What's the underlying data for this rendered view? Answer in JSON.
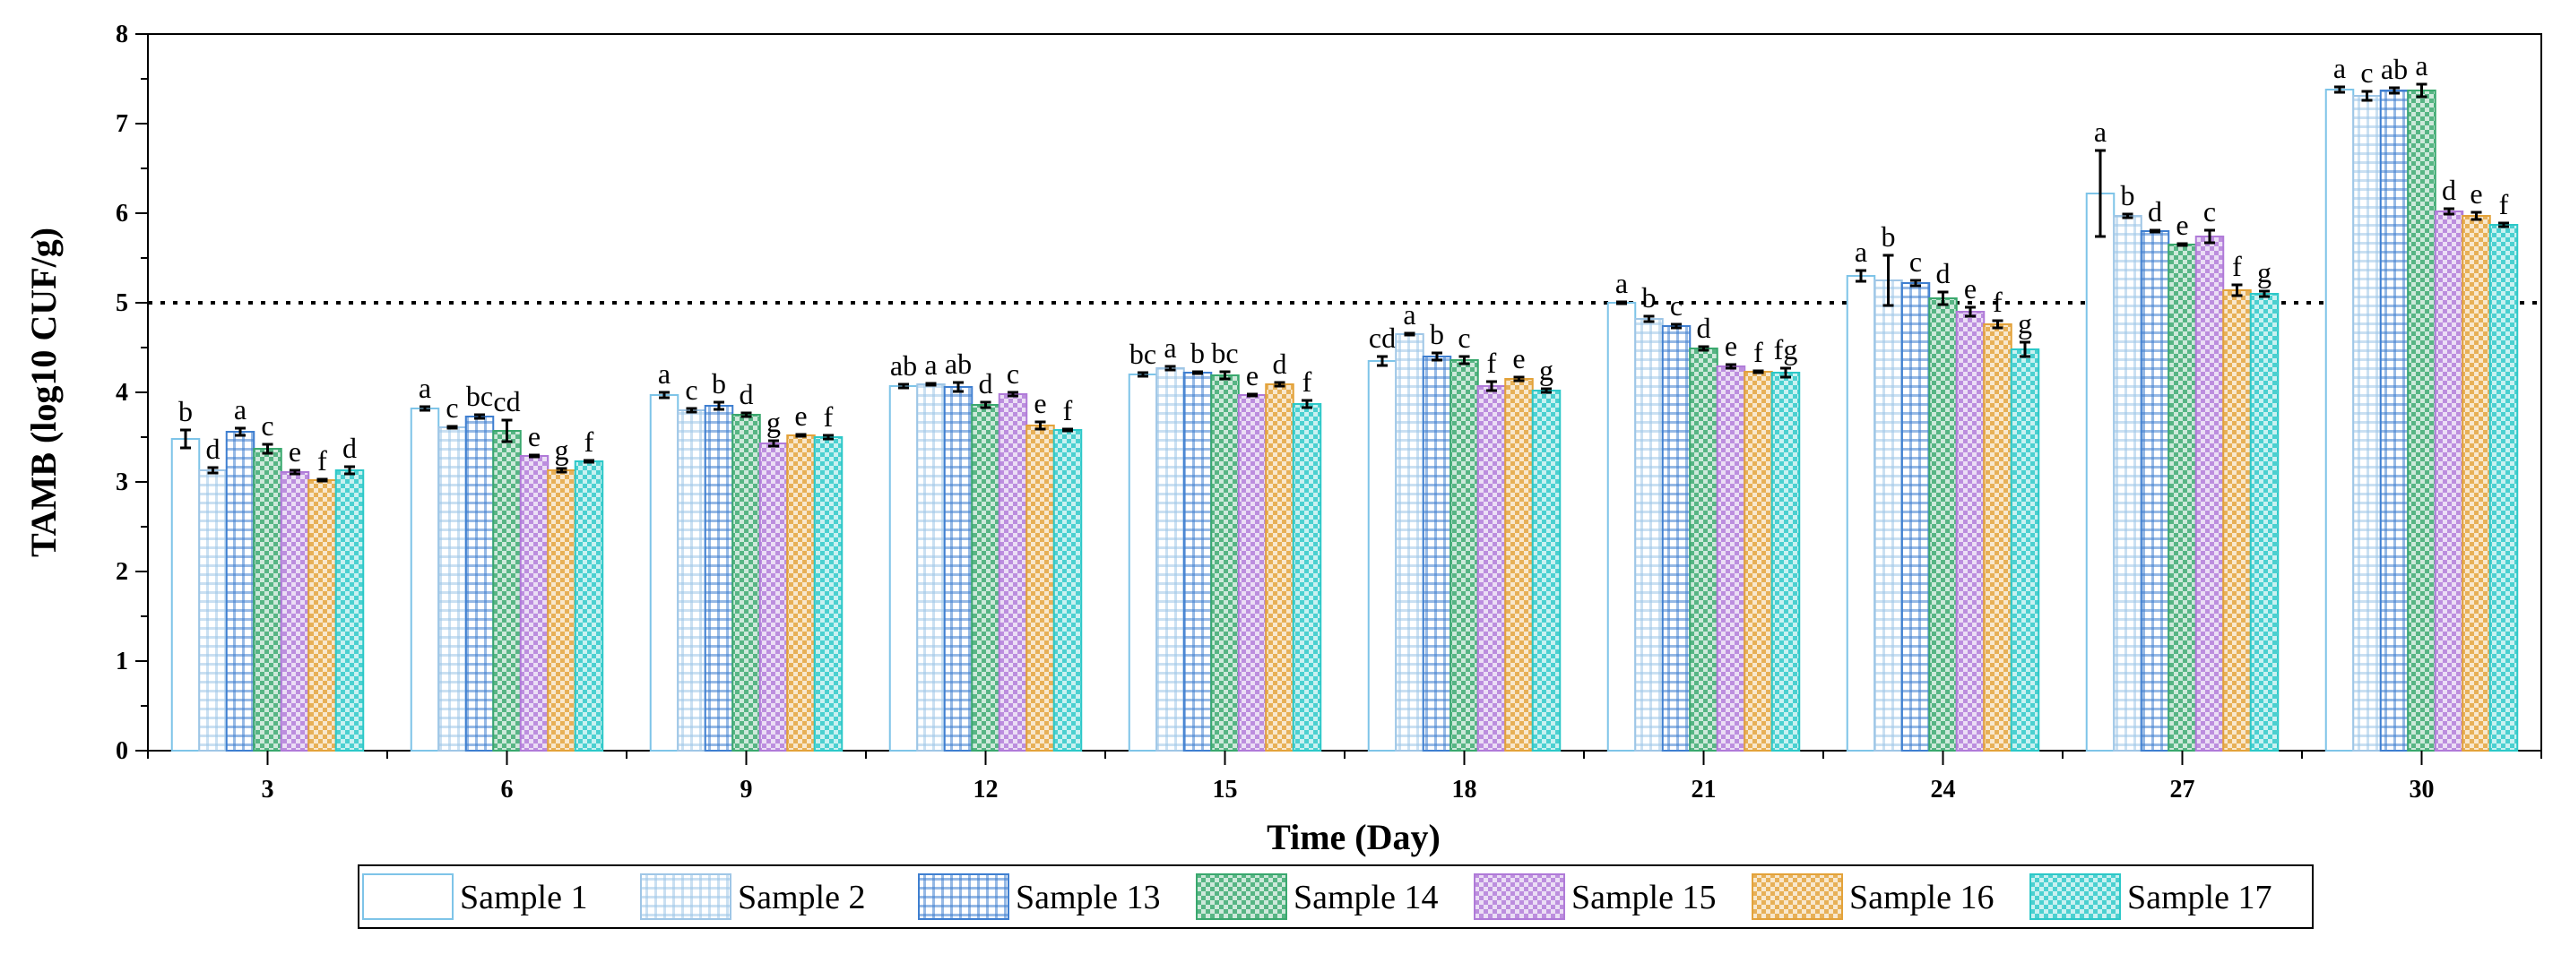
{
  "chart_data": {
    "type": "bar",
    "xlabel": "Time (Day)",
    "ylabel": "TAMB (log10 CUF/g)",
    "ylim": [
      0,
      8
    ],
    "yticks": [
      "0",
      "1",
      "2",
      "3",
      "4",
      "5",
      "6",
      "7",
      "8"
    ],
    "threshold": 5,
    "legend_position": "bottom",
    "categories": [
      "3",
      "6",
      "9",
      "12",
      "15",
      "18",
      "21",
      "24",
      "27",
      "30"
    ],
    "series": [
      {
        "name": "Sample 1",
        "color": "#7ec4e8",
        "pattern": "none",
        "values": [
          3.48,
          3.82,
          3.97,
          4.07,
          4.2,
          4.35,
          5.0,
          5.3,
          6.22,
          7.38
        ],
        "errors": [
          0.1,
          0.02,
          0.03,
          0.02,
          0.02,
          0.05,
          0.01,
          0.06,
          0.48,
          0.03
        ],
        "letters": [
          "b",
          "a",
          "a",
          "ab",
          "bc",
          "cd",
          "a",
          "a",
          "a",
          "a"
        ]
      },
      {
        "name": "Sample 2",
        "color": "#9fc6e6",
        "pattern": "grid",
        "values": [
          3.13,
          3.61,
          3.8,
          4.09,
          4.27,
          4.65,
          4.82,
          5.25,
          5.97,
          7.31
        ],
        "errors": [
          0.03,
          0.01,
          0.02,
          0.01,
          0.02,
          0.01,
          0.03,
          0.28,
          0.02,
          0.05
        ],
        "letters": [
          "d",
          "c",
          "c",
          "a",
          "a",
          "a",
          "b",
          "b",
          "b",
          "c"
        ]
      },
      {
        "name": "Sample 13",
        "color": "#3f7fd0",
        "pattern": "grid",
        "values": [
          3.56,
          3.73,
          3.85,
          4.06,
          4.22,
          4.4,
          4.74,
          5.22,
          5.8,
          7.37
        ],
        "errors": [
          0.04,
          0.02,
          0.04,
          0.05,
          0.01,
          0.04,
          0.02,
          0.03,
          0.01,
          0.03
        ],
        "letters": [
          "a",
          "bc",
          "b",
          "ab",
          "b",
          "b",
          "c",
          "c",
          "d",
          "ab"
        ]
      },
      {
        "name": "Sample 14",
        "color": "#3aa86e",
        "pattern": "check",
        "values": [
          3.37,
          3.57,
          3.75,
          3.86,
          4.19,
          4.36,
          4.49,
          5.05,
          5.65,
          7.37
        ],
        "errors": [
          0.05,
          0.12,
          0.02,
          0.03,
          0.04,
          0.04,
          0.02,
          0.07,
          0.01,
          0.07
        ],
        "letters": [
          "c",
          "cd",
          "d",
          "d",
          "bc",
          "c",
          "d",
          "d",
          "e",
          "a"
        ]
      },
      {
        "name": "Sample 15",
        "color": "#b07ad8",
        "pattern": "check",
        "values": [
          3.11,
          3.29,
          3.43,
          3.98,
          3.97,
          4.07,
          4.29,
          4.9,
          5.74,
          6.02
        ],
        "errors": [
          0.02,
          0.01,
          0.03,
          0.02,
          0.01,
          0.05,
          0.02,
          0.05,
          0.07,
          0.03
        ],
        "letters": [
          "e",
          "e",
          "g",
          "c",
          "e",
          "f",
          "e",
          "e",
          "c",
          "d"
        ]
      },
      {
        "name": "Sample 16",
        "color": "#e3a23a",
        "pattern": "check",
        "values": [
          3.02,
          3.13,
          3.52,
          3.63,
          4.09,
          4.15,
          4.23,
          4.76,
          5.14,
          5.97
        ],
        "errors": [
          0.01,
          0.02,
          0.01,
          0.04,
          0.02,
          0.02,
          0.01,
          0.04,
          0.06,
          0.04
        ],
        "letters": [
          "f",
          "g",
          "e",
          "e",
          "d",
          "e",
          "f",
          "f",
          "f",
          "e"
        ]
      },
      {
        "name": "Sample 17",
        "color": "#2cc8c8",
        "pattern": "check",
        "values": [
          3.13,
          3.23,
          3.5,
          3.58,
          3.87,
          4.02,
          4.22,
          4.48,
          5.1,
          5.87
        ],
        "errors": [
          0.04,
          0.01,
          0.02,
          0.01,
          0.04,
          0.02,
          0.05,
          0.08,
          0.03,
          0.02
        ],
        "letters": [
          "d",
          "f",
          "f",
          "f",
          "f",
          "g",
          "fg",
          "g",
          "g",
          "f"
        ]
      }
    ]
  }
}
